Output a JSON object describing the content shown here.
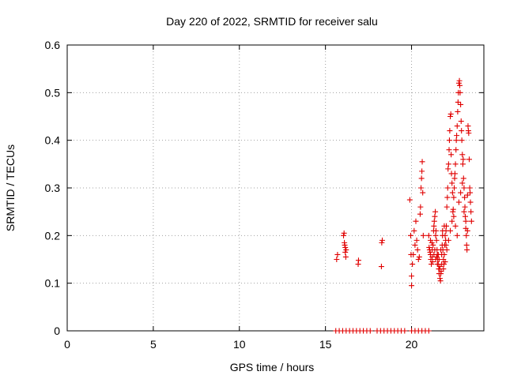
{
  "chart_data": {
    "type": "scatter",
    "title": "Day 220 of 2022, SRMTID for receiver salu",
    "xlabel": "GPS time / hours",
    "ylabel": "SRMTID / TECUs",
    "xlim": [
      0,
      24.2
    ],
    "ylim": [
      0,
      0.6
    ],
    "xticks": [
      0,
      5,
      10,
      15,
      20
    ],
    "yticks": [
      0,
      0.1,
      0.2,
      0.3,
      0.4,
      0.5,
      0.6
    ],
    "xtick_labels": [
      "0",
      "5",
      "10",
      "15",
      "20"
    ],
    "ytick_labels": [
      "0",
      "0.1",
      "0.2",
      "0.3",
      "0.4",
      "0.5",
      "0.6"
    ],
    "grid": true,
    "marker": "+",
    "marker_color": "#e00000",
    "series": [
      {
        "name": "salu",
        "points": [
          [
            15.65,
            0.15
          ],
          [
            15.7,
            0.16
          ],
          [
            16.05,
            0.2
          ],
          [
            16.08,
            0.205
          ],
          [
            16.1,
            0.185
          ],
          [
            16.12,
            0.18
          ],
          [
            16.15,
            0.175
          ],
          [
            16.15,
            0.165
          ],
          [
            16.18,
            0.155
          ],
          [
            16.2,
            0.17
          ],
          [
            16.9,
            0.14
          ],
          [
            16.92,
            0.148
          ],
          [
            18.25,
            0.135
          ],
          [
            18.27,
            0.185
          ],
          [
            18.3,
            0.19
          ],
          [
            19.9,
            0.275
          ],
          [
            19.95,
            0.2
          ],
          [
            19.97,
            0.16
          ],
          [
            20.0,
            0.095
          ],
          [
            20.0,
            0.115
          ],
          [
            20.05,
            0.14
          ],
          [
            20.1,
            0.16
          ],
          [
            20.15,
            0.21
          ],
          [
            20.2,
            0.18
          ],
          [
            20.25,
            0.23
          ],
          [
            20.3,
            0.19
          ],
          [
            20.35,
            0.17
          ],
          [
            20.4,
            0.15
          ],
          [
            20.45,
            0.155
          ],
          [
            20.5,
            0.245
          ],
          [
            20.52,
            0.26
          ],
          [
            20.55,
            0.3
          ],
          [
            20.58,
            0.32
          ],
          [
            20.6,
            0.335
          ],
          [
            20.62,
            0.355
          ],
          [
            20.65,
            0.29
          ],
          [
            20.68,
            0.2
          ],
          [
            21.0,
            0.2
          ],
          [
            21.02,
            0.175
          ],
          [
            21.05,
            0.17
          ],
          [
            21.08,
            0.165
          ],
          [
            21.1,
            0.16
          ],
          [
            21.12,
            0.15
          ],
          [
            21.15,
            0.14
          ],
          [
            21.18,
            0.185
          ],
          [
            21.2,
            0.155
          ],
          [
            21.22,
            0.145
          ],
          [
            21.25,
            0.18
          ],
          [
            21.28,
            0.21
          ],
          [
            21.3,
            0.22
          ],
          [
            21.32,
            0.23
          ],
          [
            21.35,
            0.24
          ],
          [
            21.38,
            0.25
          ],
          [
            21.4,
            0.2
          ],
          [
            21.42,
            0.21
          ],
          [
            21.45,
            0.19
          ],
          [
            21.48,
            0.17
          ],
          [
            21.5,
            0.16
          ],
          [
            21.52,
            0.15
          ],
          [
            21.55,
            0.14
          ],
          [
            21.58,
            0.13
          ],
          [
            21.6,
            0.12
          ],
          [
            21.62,
            0.13
          ],
          [
            21.65,
            0.11
          ],
          [
            21.68,
            0.105
          ],
          [
            21.7,
            0.12
          ],
          [
            21.72,
            0.125
          ],
          [
            21.75,
            0.16
          ],
          [
            21.78,
            0.18
          ],
          [
            21.8,
            0.2
          ],
          [
            21.82,
            0.17
          ],
          [
            21.85,
            0.15
          ],
          [
            21.88,
            0.14
          ],
          [
            21.9,
            0.16
          ],
          [
            21.92,
            0.18
          ],
          [
            21.95,
            0.2
          ],
          [
            21.98,
            0.19
          ],
          [
            22.0,
            0.21
          ],
          [
            22.02,
            0.22
          ],
          [
            22.05,
            0.26
          ],
          [
            22.08,
            0.28
          ],
          [
            22.1,
            0.3
          ],
          [
            22.12,
            0.34
          ],
          [
            22.15,
            0.35
          ],
          [
            22.18,
            0.38
          ],
          [
            22.2,
            0.4
          ],
          [
            22.22,
            0.42
          ],
          [
            22.25,
            0.45
          ],
          [
            22.28,
            0.455
          ],
          [
            22.3,
            0.37
          ],
          [
            22.32,
            0.33
          ],
          [
            22.35,
            0.31
          ],
          [
            22.38,
            0.29
          ],
          [
            22.4,
            0.25
          ],
          [
            22.42,
            0.255
          ],
          [
            22.45,
            0.28
          ],
          [
            22.48,
            0.3
          ],
          [
            22.5,
            0.32
          ],
          [
            22.52,
            0.33
          ],
          [
            22.55,
            0.35
          ],
          [
            22.58,
            0.38
          ],
          [
            22.6,
            0.4
          ],
          [
            22.62,
            0.41
          ],
          [
            22.65,
            0.43
          ],
          [
            22.68,
            0.46
          ],
          [
            22.7,
            0.48
          ],
          [
            22.72,
            0.5
          ],
          [
            22.75,
            0.52
          ],
          [
            22.78,
            0.525
          ],
          [
            22.8,
            0.515
          ],
          [
            22.82,
            0.5
          ],
          [
            22.85,
            0.475
          ],
          [
            22.88,
            0.44
          ],
          [
            22.9,
            0.42
          ],
          [
            22.92,
            0.4
          ],
          [
            22.95,
            0.37
          ],
          [
            22.98,
            0.35
          ],
          [
            23.0,
            0.36
          ],
          [
            23.02,
            0.32
          ],
          [
            23.05,
            0.3
          ],
          [
            23.08,
            0.28
          ],
          [
            23.1,
            0.26
          ],
          [
            23.12,
            0.24
          ],
          [
            23.15,
            0.215
          ],
          [
            23.18,
            0.2
          ],
          [
            23.2,
            0.18
          ],
          [
            23.22,
            0.17
          ],
          [
            23.25,
            0.285
          ],
          [
            23.28,
            0.43
          ],
          [
            23.3,
            0.42
          ],
          [
            23.32,
            0.415
          ],
          [
            23.35,
            0.36
          ],
          [
            23.38,
            0.3
          ],
          [
            23.4,
            0.29
          ],
          [
            23.42,
            0.27
          ],
          [
            23.45,
            0.25
          ],
          [
            23.48,
            0.23
          ],
          [
            21.35,
            0.17
          ],
          [
            21.45,
            0.155
          ],
          [
            21.55,
            0.16
          ],
          [
            21.65,
            0.135
          ],
          [
            21.75,
            0.14
          ],
          [
            21.85,
            0.13
          ],
          [
            21.95,
            0.145
          ],
          [
            22.05,
            0.17
          ],
          [
            22.15,
            0.19
          ],
          [
            22.25,
            0.21
          ],
          [
            22.35,
            0.23
          ],
          [
            22.45,
            0.24
          ],
          [
            22.55,
            0.22
          ],
          [
            22.65,
            0.2
          ],
          [
            22.75,
            0.27
          ],
          [
            22.85,
            0.29
          ],
          [
            22.95,
            0.31
          ],
          [
            23.05,
            0.25
          ],
          [
            23.15,
            0.23
          ],
          [
            23.25,
            0.21
          ],
          [
            21.1,
            0.19
          ],
          [
            21.2,
            0.17
          ],
          [
            21.3,
            0.16
          ],
          [
            21.4,
            0.15
          ],
          [
            21.5,
            0.14
          ],
          [
            21.6,
            0.15
          ],
          [
            21.7,
            0.17
          ],
          [
            21.8,
            0.21
          ],
          [
            21.9,
            0.22
          ],
          [
            22.0,
            0.18
          ],
          [
            15.6,
            0.0
          ],
          [
            15.8,
            0.0
          ],
          [
            16.0,
            0.0
          ],
          [
            16.2,
            0.0
          ],
          [
            16.4,
            0.0
          ],
          [
            16.6,
            0.0
          ],
          [
            16.8,
            0.0
          ],
          [
            17.0,
            0.0
          ],
          [
            17.2,
            0.0
          ],
          [
            17.4,
            0.0
          ],
          [
            17.6,
            0.0
          ],
          [
            18.0,
            0.0
          ],
          [
            18.2,
            0.0
          ],
          [
            18.4,
            0.0
          ],
          [
            18.6,
            0.0
          ],
          [
            18.8,
            0.0
          ],
          [
            19.0,
            0.0
          ],
          [
            19.2,
            0.0
          ],
          [
            19.4,
            0.0
          ],
          [
            19.6,
            0.0
          ],
          [
            20.0,
            0.0
          ],
          [
            20.2,
            0.0
          ],
          [
            20.4,
            0.0
          ],
          [
            20.6,
            0.0
          ],
          [
            20.8,
            0.0
          ],
          [
            21.0,
            0.0
          ]
        ]
      }
    ]
  }
}
